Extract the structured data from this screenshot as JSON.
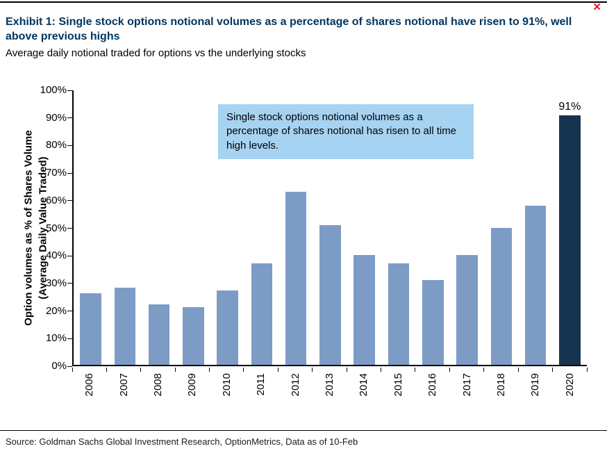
{
  "window": {
    "close_glyph": "✕",
    "close_color": "#e8112d"
  },
  "header": {
    "title": "Exhibit 1: Single stock options notional volumes as a percentage of shares notional have risen to 91%, well above previous highs",
    "subtitle": "Average daily notional traded for options vs the underlying stocks"
  },
  "chart_data": {
    "type": "bar",
    "categories": [
      "2006",
      "2007",
      "2008",
      "2009",
      "2010",
      "2011",
      "2012",
      "2013",
      "2014",
      "2015",
      "2016",
      "2017",
      "2018",
      "2019",
      "2020"
    ],
    "values": [
      26,
      28,
      22,
      21,
      27,
      37,
      63,
      51,
      40,
      37,
      31,
      40,
      50,
      58,
      91
    ],
    "title": "Single stock options notional volumes as a percentage of shares notional have risen to 91%, well above previous highs",
    "xlabel": "",
    "ylabel_line1": "Option volumes as % of  Shares Volume",
    "ylabel_line2": "(Average Daily Value Traded)",
    "ylim": [
      0,
      100
    ],
    "ytick_labels": [
      "0%",
      "10%",
      "20%",
      "30%",
      "40%",
      "50%",
      "60%",
      "70%",
      "80%",
      "90%",
      "100%"
    ],
    "grid": false,
    "legend": false,
    "bar_color": "#7c9cc6",
    "highlight_color": "#16344f",
    "highlight_index": 14,
    "value_label": {
      "index": 14,
      "text": "91%"
    },
    "annotation": "Single stock options notional volumes as a percentage of shares notional has risen to all time high levels.",
    "annotation_bg": "#a7d3f2"
  },
  "footer": {
    "source": "Source: Goldman Sachs Global Investment Research, OptionMetrics, Data as of 10-Feb"
  }
}
